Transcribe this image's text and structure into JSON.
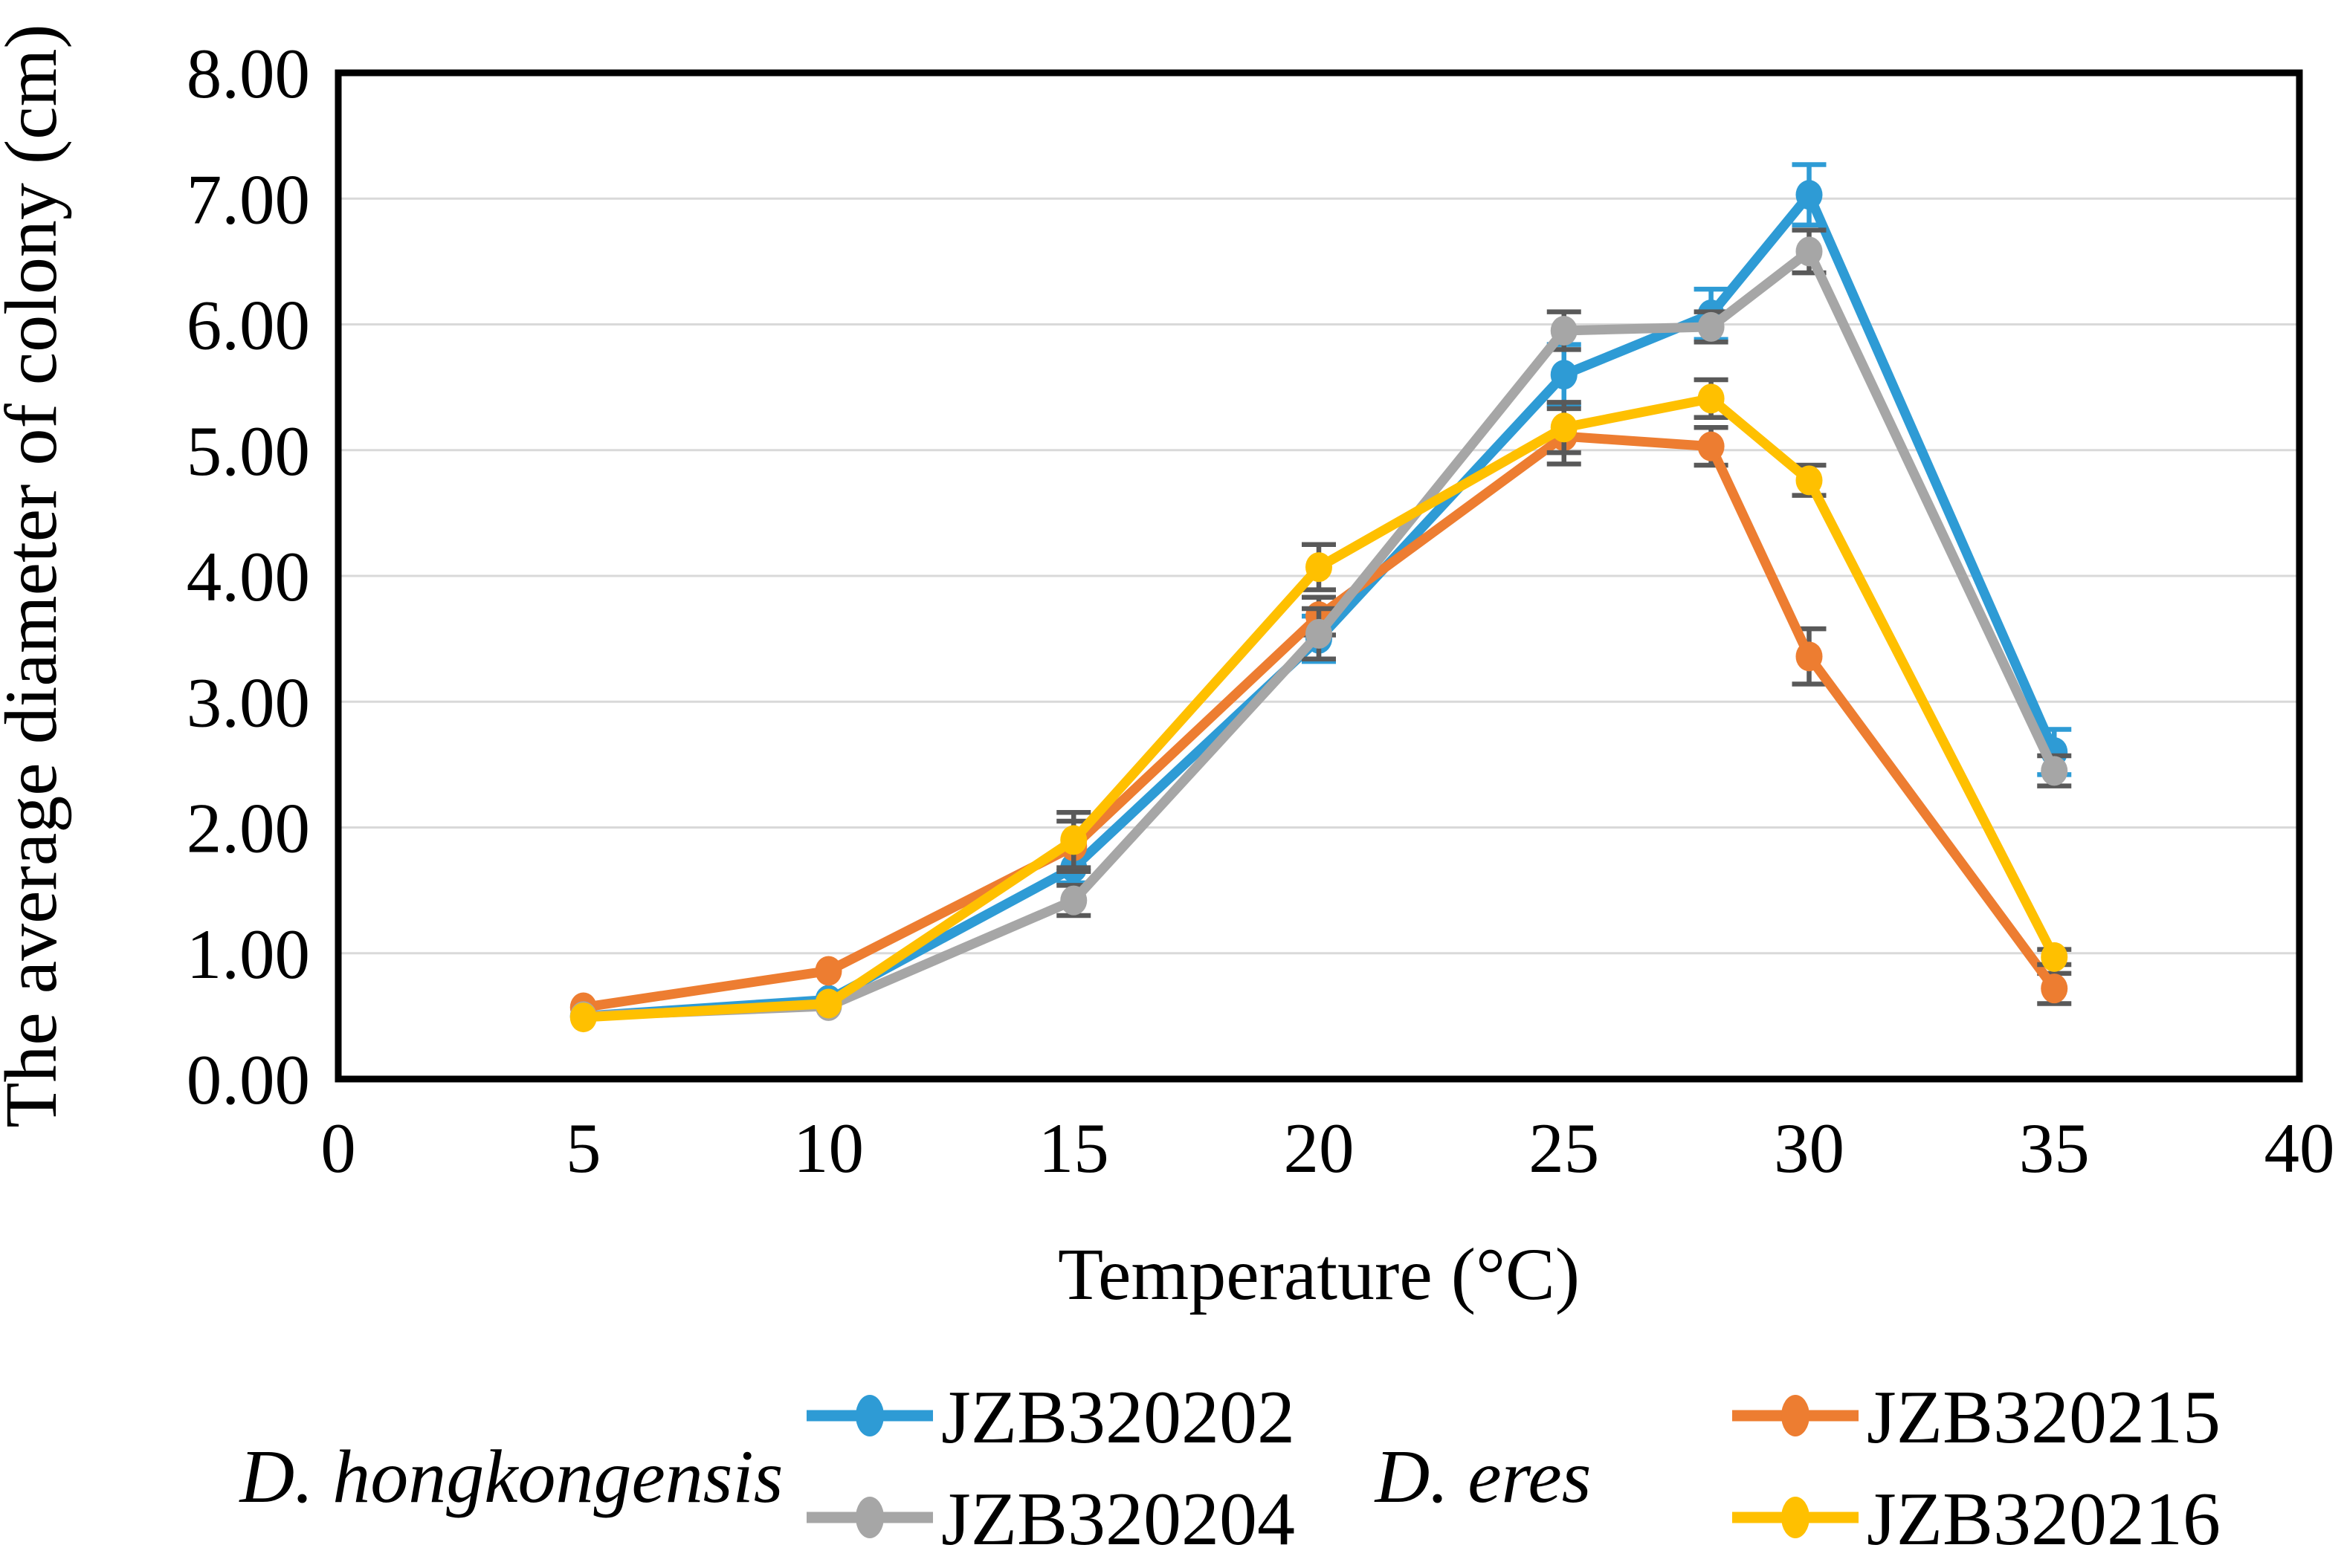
{
  "figure": {
    "background": "#ffffff",
    "frame_color": "#000000",
    "gridline_color": "#D9D9D9"
  },
  "chart_data": {
    "type": "line",
    "title": "",
    "xlabel": "Temperature (°C)",
    "ylabel": "The average diameter of colony (cm)",
    "x": [
      5,
      10,
      15,
      20,
      25,
      28,
      30,
      35
    ],
    "xlim": [
      0,
      40
    ],
    "ylim": [
      0,
      8
    ],
    "x_ticks": [
      0,
      5,
      10,
      15,
      20,
      25,
      30,
      35,
      40
    ],
    "y_ticks": [
      0,
      1,
      2,
      3,
      4,
      5,
      6,
      7,
      8
    ],
    "y_tick_labels": [
      "0.00",
      "1.00",
      "2.00",
      "3.00",
      "4.00",
      "5.00",
      "6.00",
      "7.00",
      "8.00"
    ],
    "grid": "horizontal",
    "error_bar_color": "#595959",
    "draw_order": [
      0,
      2,
      1,
      3
    ],
    "series": [
      {
        "name": "JZB320202",
        "species": "D. hongkongensis",
        "color": "#2E9BD5",
        "error_color": "#2E9BD5",
        "values": [
          0.5,
          0.63,
          1.68,
          3.5,
          5.6,
          6.08,
          7.03,
          2.6
        ],
        "errors": [
          0,
          0,
          0.12,
          0.18,
          0.24,
          0.2,
          0.24,
          0.18
        ]
      },
      {
        "name": "JZB320204",
        "species": "D. hongkongensis",
        "color": "#A6A6A6",
        "error_color": "#595959",
        "values": [
          0.5,
          0.58,
          1.42,
          3.54,
          5.95,
          5.98,
          6.58,
          2.45
        ],
        "errors": [
          0,
          0,
          0.12,
          0.2,
          0.15,
          0.12,
          0.17,
          0.12
        ]
      },
      {
        "name": "JZB320215",
        "species": "D. eres",
        "color": "#ED7D31",
        "error_color": "#595959",
        "values": [
          0.57,
          0.86,
          1.85,
          3.68,
          5.11,
          5.03,
          3.36,
          0.72
        ],
        "errors": [
          0,
          0,
          0.2,
          0.15,
          0.22,
          0.15,
          0.22,
          0.12
        ]
      },
      {
        "name": "JZB320216",
        "species": "D. eres",
        "color": "#FFC000",
        "error_color": "#595959",
        "values": [
          0.49,
          0.6,
          1.9,
          4.07,
          5.18,
          5.41,
          4.76,
          0.97
        ],
        "errors": [
          0,
          0,
          0.22,
          0.18,
          0.2,
          0.15,
          0.12,
          0.06
        ]
      }
    ],
    "legend": {
      "position": "bottom",
      "groups": [
        {
          "label": "D. hongkongensis",
          "series": [
            "JZB320202",
            "JZB320204"
          ]
        },
        {
          "label": "D. eres",
          "series": [
            "JZB320215",
            "JZB320216"
          ]
        }
      ]
    }
  }
}
